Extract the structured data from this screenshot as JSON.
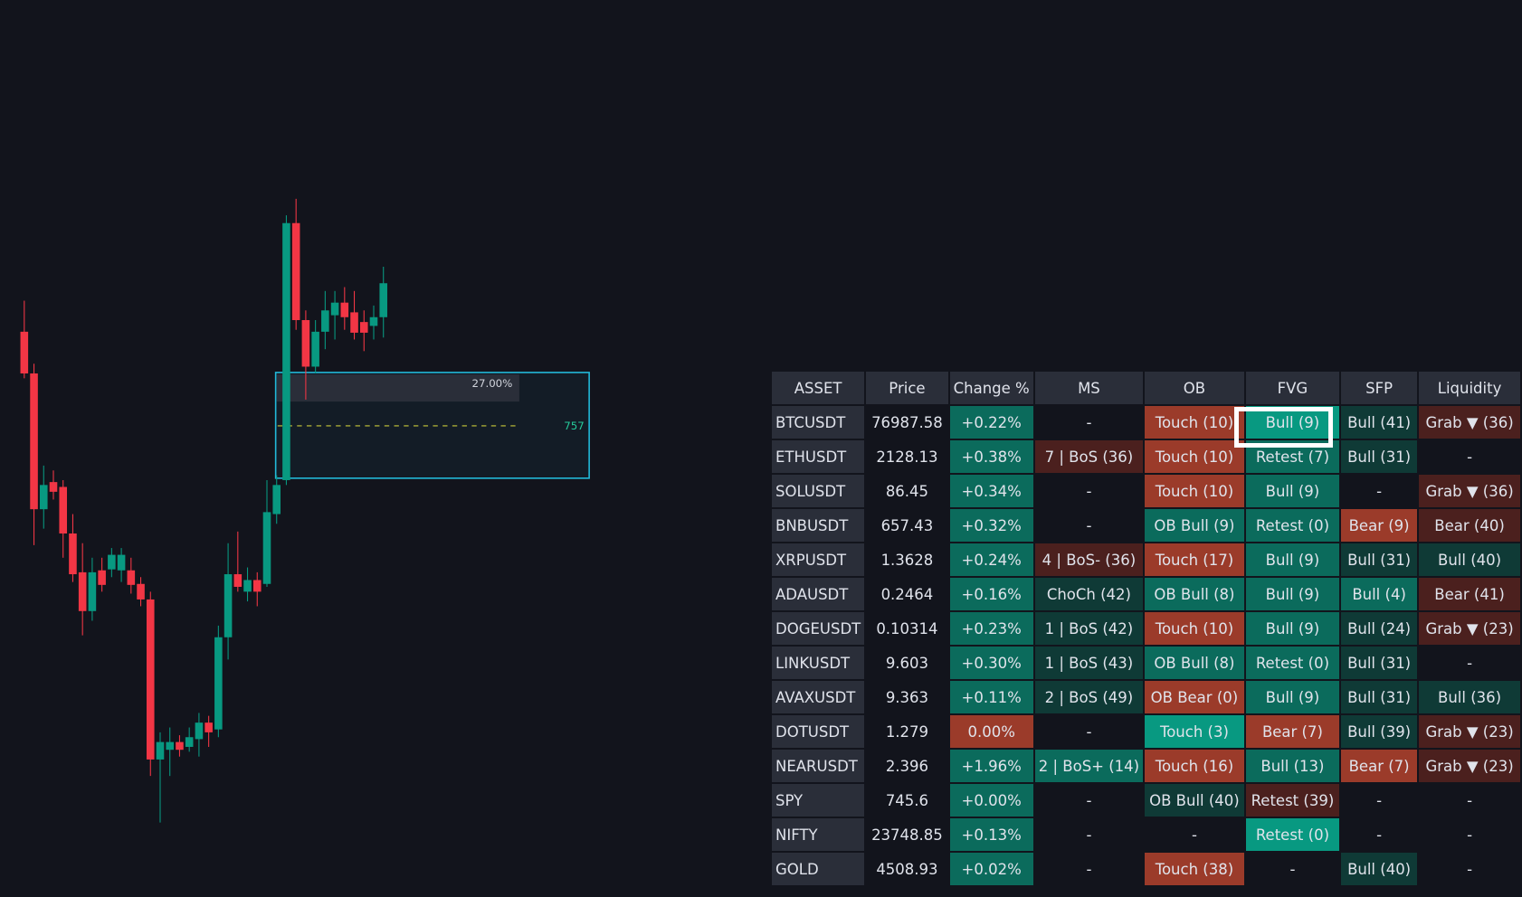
{
  "chart": {
    "zone_label": "27.00%",
    "level_label": "757"
  },
  "table": {
    "header": [
      "ASSET",
      "Price",
      "Change %",
      "MS",
      "OB",
      "FVG",
      "SFP",
      "Liquidity"
    ],
    "rows": [
      {
        "cells": [
          {
            "text": "BTCUSDT",
            "bg": "#2a2e39"
          },
          {
            "text": "76987.58"
          },
          {
            "text": "+0.22%",
            "bg": "#0b6b5c"
          },
          {
            "text": "-"
          },
          {
            "text": "Touch (10)",
            "bg": "#9b3b2a"
          },
          {
            "text": "Bull (9)",
            "bg": "#089981"
          },
          {
            "text": "Bull (41)",
            "bg": "#0f3a36"
          },
          {
            "text": "Grab ▼ (36)",
            "bg": "#4b201e"
          }
        ]
      },
      {
        "cells": [
          {
            "text": "ETHUSDT",
            "bg": "#2a2e39"
          },
          {
            "text": "2128.13"
          },
          {
            "text": "+0.38%",
            "bg": "#0b6b5c"
          },
          {
            "text": "7 | BoS (36)",
            "bg": "#4b201e"
          },
          {
            "text": "Touch (10)",
            "bg": "#9b3b2a"
          },
          {
            "text": "Retest (7)",
            "bg": "#0b6b5c"
          },
          {
            "text": "Bull (31)",
            "bg": "#0f3a36"
          },
          {
            "text": "-"
          }
        ]
      },
      {
        "cells": [
          {
            "text": "SOLUSDT",
            "bg": "#2a2e39"
          },
          {
            "text": "86.45"
          },
          {
            "text": "+0.34%",
            "bg": "#0b6b5c"
          },
          {
            "text": "-"
          },
          {
            "text": "Touch (10)",
            "bg": "#9b3b2a"
          },
          {
            "text": "Bull (9)",
            "bg": "#0b6b5c"
          },
          {
            "text": "-"
          },
          {
            "text": "Grab ▼ (36)",
            "bg": "#4b201e"
          }
        ]
      },
      {
        "cells": [
          {
            "text": "BNBUSDT",
            "bg": "#2a2e39"
          },
          {
            "text": "657.43"
          },
          {
            "text": "+0.32%",
            "bg": "#0b6b5c"
          },
          {
            "text": "-"
          },
          {
            "text": "OB Bull (9)",
            "bg": "#0b6b5c"
          },
          {
            "text": "Retest (0)",
            "bg": "#0b6b5c"
          },
          {
            "text": "Bear (9)",
            "bg": "#9b3b2a"
          },
          {
            "text": "Bear (40)",
            "bg": "#4b201e"
          }
        ]
      },
      {
        "cells": [
          {
            "text": "XRPUSDT",
            "bg": "#2a2e39"
          },
          {
            "text": "1.3628"
          },
          {
            "text": "+0.24%",
            "bg": "#0b6b5c"
          },
          {
            "text": "4 | BoS- (36)",
            "bg": "#4b201e"
          },
          {
            "text": "Touch (17)",
            "bg": "#9b3b2a"
          },
          {
            "text": "Bull (9)",
            "bg": "#0b6b5c"
          },
          {
            "text": "Bull (31)",
            "bg": "#0f3a36"
          },
          {
            "text": "Bull (40)",
            "bg": "#0f3a36"
          }
        ]
      },
      {
        "cells": [
          {
            "text": "ADAUSDT",
            "bg": "#2a2e39"
          },
          {
            "text": "0.2464"
          },
          {
            "text": "+0.16%",
            "bg": "#0b6b5c"
          },
          {
            "text": "ChoCh (42)",
            "bg": "#0f3a36"
          },
          {
            "text": "OB Bull (8)",
            "bg": "#0b6b5c"
          },
          {
            "text": "Bull (9)",
            "bg": "#0b6b5c"
          },
          {
            "text": "Bull (4)",
            "bg": "#0b6b5c"
          },
          {
            "text": "Bear (41)",
            "bg": "#4b201e"
          }
        ]
      },
      {
        "cells": [
          {
            "text": "DOGEUSDT",
            "bg": "#2a2e39"
          },
          {
            "text": "0.10314"
          },
          {
            "text": "+0.23%",
            "bg": "#0b6b5c"
          },
          {
            "text": "1 | BoS (42)",
            "bg": "#0f3a36"
          },
          {
            "text": "Touch (10)",
            "bg": "#9b3b2a"
          },
          {
            "text": "Bull (9)",
            "bg": "#0b6b5c"
          },
          {
            "text": "Bull (24)",
            "bg": "#0f3a36"
          },
          {
            "text": "Grab ▼ (23)",
            "bg": "#4b201e"
          }
        ]
      },
      {
        "cells": [
          {
            "text": "LINKUSDT",
            "bg": "#2a2e39"
          },
          {
            "text": "9.603"
          },
          {
            "text": "+0.30%",
            "bg": "#0b6b5c"
          },
          {
            "text": "1 | BoS (43)",
            "bg": "#0f3a36"
          },
          {
            "text": "OB Bull (8)",
            "bg": "#0b6b5c"
          },
          {
            "text": "Retest (0)",
            "bg": "#0b6b5c"
          },
          {
            "text": "Bull (31)",
            "bg": "#0f3a36"
          },
          {
            "text": "-"
          }
        ]
      },
      {
        "cells": [
          {
            "text": "AVAXUSDT",
            "bg": "#2a2e39"
          },
          {
            "text": "9.363"
          },
          {
            "text": "+0.11%",
            "bg": "#0b6b5c"
          },
          {
            "text": "2 | BoS (49)",
            "bg": "#0f3a36"
          },
          {
            "text": "OB Bear (0)",
            "bg": "#9b3b2a"
          },
          {
            "text": "Bull (9)",
            "bg": "#0b6b5c"
          },
          {
            "text": "Bull (31)",
            "bg": "#0f3a36"
          },
          {
            "text": "Bull (36)",
            "bg": "#0f3a36"
          }
        ]
      },
      {
        "cells": [
          {
            "text": "DOTUSDT",
            "bg": "#2a2e39"
          },
          {
            "text": "1.279"
          },
          {
            "text": "0.00%",
            "bg": "#9b3b2a"
          },
          {
            "text": "-"
          },
          {
            "text": "Touch (3)",
            "bg": "#089981"
          },
          {
            "text": "Bear (7)",
            "bg": "#9b3b2a"
          },
          {
            "text": "Bull (39)",
            "bg": "#0f3a36"
          },
          {
            "text": "Grab ▼ (23)",
            "bg": "#4b201e"
          }
        ]
      },
      {
        "cells": [
          {
            "text": "NEARUSDT",
            "bg": "#2a2e39"
          },
          {
            "text": "2.396"
          },
          {
            "text": "+1.96%",
            "bg": "#0b6b5c"
          },
          {
            "text": "2 | BoS+ (14)",
            "bg": "#0b6b5c"
          },
          {
            "text": "Touch (16)",
            "bg": "#9b3b2a"
          },
          {
            "text": "Bull (13)",
            "bg": "#0b6b5c"
          },
          {
            "text": "Bear (7)",
            "bg": "#9b3b2a"
          },
          {
            "text": "Grab ▼ (23)",
            "bg": "#4b201e"
          }
        ]
      },
      {
        "cells": [
          {
            "text": "SPY",
            "bg": "#2a2e39"
          },
          {
            "text": "745.6"
          },
          {
            "text": "+0.00%",
            "bg": "#0b6b5c"
          },
          {
            "text": "-"
          },
          {
            "text": "OB Bull (40)",
            "bg": "#0f3a36"
          },
          {
            "text": "Retest (39)",
            "bg": "#4b201e"
          },
          {
            "text": "-"
          },
          {
            "text": "-"
          }
        ]
      },
      {
        "cells": [
          {
            "text": "NIFTY",
            "bg": "#2a2e39"
          },
          {
            "text": "23748.85"
          },
          {
            "text": "+0.13%",
            "bg": "#0b6b5c"
          },
          {
            "text": "-"
          },
          {
            "text": "-"
          },
          {
            "text": "Retest (0)",
            "bg": "#089981"
          },
          {
            "text": "-"
          },
          {
            "text": "-"
          }
        ]
      },
      {
        "cells": [
          {
            "text": "GOLD",
            "bg": "#2a2e39"
          },
          {
            "text": "4508.93"
          },
          {
            "text": "+0.02%",
            "bg": "#0b6b5c"
          },
          {
            "text": "-"
          },
          {
            "text": "Touch (38)",
            "bg": "#9b3b2a"
          },
          {
            "text": "-"
          },
          {
            "text": "Bull (40)",
            "bg": "#0f3a36"
          },
          {
            "text": "-"
          }
        ]
      }
    ]
  }
}
